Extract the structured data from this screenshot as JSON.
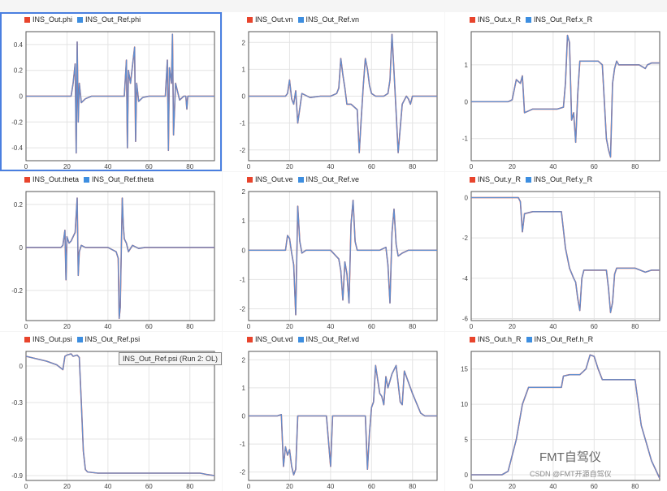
{
  "colors": {
    "out": "#e8442c",
    "ref": "#3d8ee0",
    "ref_line": "#5f8fd0",
    "axis": "#555",
    "grid": "#e4e4e4"
  },
  "tooltip": "INS_Out_Ref.psi (Run 2: OL)",
  "watermark": {
    "main": "FMT自驾仪",
    "sub": "CSDN @FMT开源自驾仪"
  },
  "chart_data": [
    {
      "type": "line",
      "id": "phi",
      "legend": [
        "INS_Out.phi",
        "INS_Out_Ref.phi"
      ],
      "xlim": [
        0,
        92
      ],
      "ylim": [
        -0.5,
        0.5
      ],
      "xticks": [
        0,
        20,
        40,
        60,
        80
      ],
      "yticks": [
        0.4,
        0.2,
        0,
        -0.2,
        -0.4
      ],
      "series": [
        {
          "x": [
            0,
            22,
            23,
            24,
            24.5,
            25,
            25.5,
            26,
            27,
            29,
            32,
            35,
            48,
            49,
            49.5,
            50,
            51,
            53,
            53.5,
            54,
            55,
            57,
            60,
            68,
            69,
            69.5,
            70,
            71,
            71.5,
            72,
            73,
            75,
            77,
            78,
            78.5,
            79,
            90,
            92
          ],
          "y": [
            0,
            0,
            0.1,
            0.25,
            -0.44,
            0.42,
            -0.2,
            0.1,
            -0.05,
            -0.02,
            0,
            0,
            0,
            0.28,
            -0.4,
            0.2,
            0.1,
            0.38,
            -0.35,
            0.1,
            -0.04,
            -0.01,
            0,
            0,
            0.28,
            -0.42,
            0.22,
            0.1,
            0.48,
            -0.3,
            0.1,
            -0.03,
            0,
            0,
            -0.1,
            0,
            0,
            0
          ]
        }
      ]
    },
    {
      "type": "line",
      "id": "vn",
      "legend": [
        "INS_Out.vn",
        "INS_Out_Ref.vn"
      ],
      "xlim": [
        0,
        92
      ],
      "ylim": [
        -2.4,
        2.4
      ],
      "xticks": [
        0,
        20,
        40,
        60,
        80
      ],
      "yticks": [
        2,
        1,
        0,
        -1,
        -2
      ],
      "series": [
        {
          "x": [
            0,
            18,
            19,
            20,
            21,
            22,
            23,
            24,
            26,
            30,
            35,
            40,
            43,
            44,
            45,
            46,
            47,
            48,
            50,
            53,
            54,
            55,
            56,
            57,
            58,
            59,
            60,
            62,
            66,
            68,
            69,
            70,
            71,
            72,
            73,
            75,
            77,
            78,
            79,
            80,
            92
          ],
          "y": [
            0,
            0,
            0.1,
            0.6,
            -0.1,
            -0.3,
            0.2,
            -1.0,
            0.1,
            -0.05,
            0,
            0,
            0.1,
            0.3,
            1.4,
            0.8,
            0.3,
            -0.3,
            -0.3,
            -0.5,
            -2.1,
            -0.8,
            0.4,
            1.4,
            1.0,
            0.4,
            0.1,
            0,
            0,
            0.1,
            0.6,
            2.3,
            0.9,
            -0.6,
            -2.1,
            -0.3,
            0,
            -0.1,
            -0.3,
            0,
            0
          ]
        }
      ]
    },
    {
      "type": "line",
      "id": "x_R",
      "legend": [
        "INS_Out.x_R",
        "INS_Out_Ref.x_R"
      ],
      "xlim": [
        0,
        92
      ],
      "ylim": [
        -1.6,
        1.9
      ],
      "xticks": [
        0,
        20,
        40,
        60,
        80
      ],
      "yticks": [
        1,
        0,
        -1
      ],
      "series": [
        {
          "x": [
            0,
            18,
            20,
            22,
            24,
            25,
            26,
            28,
            30,
            35,
            42,
            45,
            46,
            47,
            48,
            49,
            50,
            51,
            52,
            53,
            55,
            58,
            60,
            62,
            64,
            66,
            67,
            68,
            69,
            70,
            71,
            72,
            74,
            78,
            82,
            85,
            86,
            88,
            92
          ],
          "y": [
            0,
            0,
            0.05,
            0.6,
            0.5,
            0.7,
            -0.3,
            -0.25,
            -0.2,
            -0.2,
            -0.2,
            -0.15,
            0.5,
            1.8,
            1.6,
            -0.5,
            -0.3,
            -1.1,
            0.2,
            1.1,
            1.1,
            1.1,
            1.1,
            1.1,
            1.0,
            -1.0,
            -1.3,
            -1.5,
            0.5,
            0.9,
            1.1,
            1.0,
            1.0,
            1.0,
            1.0,
            0.9,
            1.0,
            1.05,
            1.05
          ]
        }
      ]
    },
    {
      "type": "line",
      "id": "theta",
      "legend": [
        "INS_Out.theta",
        "INS_Out_Ref.theta"
      ],
      "xlim": [
        0,
        92
      ],
      "ylim": [
        -0.34,
        0.26
      ],
      "xticks": [
        0,
        20,
        40,
        60,
        80
      ],
      "yticks": [
        0.2,
        0,
        -0.2
      ],
      "series": [
        {
          "x": [
            0,
            17,
            18,
            19,
            19.5,
            20,
            21,
            22,
            24,
            25,
            25.5,
            26,
            27,
            29,
            32,
            40,
            44,
            45,
            45.5,
            46,
            47,
            47.5,
            48,
            49,
            50,
            52,
            55,
            58,
            62,
            92
          ],
          "y": [
            0,
            0,
            0.01,
            0.08,
            -0.15,
            0.05,
            0.02,
            0.03,
            0.07,
            0.23,
            -0.13,
            -0.02,
            0.01,
            0,
            0,
            0,
            -0.02,
            -0.05,
            -0.33,
            -0.28,
            0.23,
            0.1,
            0.04,
            0.02,
            -0.02,
            0.01,
            -0.005,
            0,
            0,
            0
          ]
        }
      ]
    },
    {
      "type": "line",
      "id": "ve",
      "legend": [
        "INS_Out.ve",
        "INS_Out_Ref.ve"
      ],
      "xlim": [
        0,
        92
      ],
      "ylim": [
        -2.4,
        2.0
      ],
      "xticks": [
        0,
        20,
        40,
        60,
        80
      ],
      "yticks": [
        2,
        1,
        0,
        -1,
        -2
      ],
      "series": [
        {
          "x": [
            0,
            18,
            19,
            20,
            21,
            22,
            23,
            24,
            25,
            26,
            28,
            32,
            40,
            44,
            45,
            46,
            47,
            48,
            49,
            50,
            51,
            52,
            53,
            55,
            58,
            60,
            64,
            67,
            68,
            69,
            70,
            71,
            72,
            73,
            75,
            78,
            92
          ],
          "y": [
            0,
            0,
            0.5,
            0.4,
            -0.1,
            -0.5,
            -2.2,
            1.5,
            0.3,
            -0.1,
            0,
            0,
            0,
            -0.3,
            -0.7,
            -1.7,
            -0.4,
            -0.8,
            -1.8,
            0.9,
            1.7,
            0.3,
            0,
            0,
            0,
            0,
            0,
            0.1,
            -0.5,
            -1.8,
            0.6,
            1.4,
            0.2,
            -0.2,
            -0.1,
            0,
            0
          ]
        }
      ]
    },
    {
      "type": "line",
      "id": "y_R",
      "legend": [
        "INS_Out.y_R",
        "INS_Out_Ref.y_R"
      ],
      "xlim": [
        0,
        92
      ],
      "ylim": [
        -6.1,
        0.3
      ],
      "xticks": [
        0,
        20,
        40,
        60,
        80
      ],
      "yticks": [
        0,
        -2,
        -4,
        -6
      ],
      "series": [
        {
          "x": [
            0,
            20,
            23,
            24,
            25,
            26,
            30,
            35,
            40,
            44,
            46,
            48,
            50,
            51,
            52,
            53,
            54,
            55,
            56,
            58,
            62,
            66,
            67,
            68,
            69,
            70,
            71,
            72,
            74,
            80,
            85,
            88,
            92
          ],
          "y": [
            0,
            0,
            0,
            -0.2,
            -1.7,
            -0.8,
            -0.7,
            -0.7,
            -0.7,
            -0.7,
            -2.5,
            -3.5,
            -4.0,
            -4.2,
            -5.0,
            -5.6,
            -4.0,
            -3.6,
            -3.6,
            -3.6,
            -3.6,
            -3.6,
            -4.5,
            -5.7,
            -5.2,
            -3.8,
            -3.5,
            -3.5,
            -3.5,
            -3.5,
            -3.7,
            -3.6,
            -3.6
          ]
        }
      ]
    },
    {
      "type": "line",
      "id": "psi",
      "legend": [
        "INS_Out.psi",
        "INS_Out_Ref.psi"
      ],
      "xlim": [
        0,
        92
      ],
      "ylim": [
        -0.94,
        0.12
      ],
      "xticks": [
        0,
        20,
        40,
        60,
        80
      ],
      "yticks": [
        0,
        -0.3,
        -0.6,
        -0.9
      ],
      "series": [
        {
          "x": [
            0,
            5,
            10,
            15,
            18,
            19,
            20,
            22,
            23,
            25,
            26,
            27,
            28,
            29,
            30,
            35,
            50,
            60,
            70,
            80,
            85,
            88,
            92
          ],
          "y": [
            0.08,
            0.06,
            0.04,
            0.01,
            -0.03,
            0.08,
            0.09,
            0.1,
            0.08,
            0.09,
            0.07,
            -0.3,
            -0.7,
            -0.85,
            -0.87,
            -0.88,
            -0.88,
            -0.88,
            -0.88,
            -0.88,
            -0.88,
            -0.89,
            -0.9
          ]
        }
      ]
    },
    {
      "type": "line",
      "id": "vd",
      "legend": [
        "INS_Out.vd",
        "INS_Out_Ref.vd"
      ],
      "xlim": [
        0,
        92
      ],
      "ylim": [
        -2.3,
        2.3
      ],
      "xticks": [
        0,
        20,
        40,
        60,
        80
      ],
      "yticks": [
        2,
        1,
        0,
        -1,
        -2
      ],
      "series": [
        {
          "x": [
            0,
            14,
            16,
            17,
            18,
            19,
            20,
            21,
            22,
            23,
            24,
            26,
            30,
            38,
            40,
            41,
            42,
            45,
            52,
            57,
            58,
            59,
            60,
            61,
            62,
            64,
            65,
            66,
            67,
            68,
            70,
            72,
            74,
            75,
            76,
            78,
            80,
            84,
            86,
            88,
            92
          ],
          "y": [
            0,
            0,
            0.05,
            -1.8,
            -1.1,
            -1.4,
            -1.2,
            -1.8,
            -2.1,
            -1.9,
            0,
            0,
            0,
            0,
            -1.8,
            0,
            0,
            0,
            0,
            0,
            -1.9,
            -0.6,
            0.3,
            0.5,
            1.8,
            0.8,
            0.7,
            0.4,
            1.4,
            1.0,
            1.5,
            1.8,
            0.5,
            0.4,
            1.6,
            1.2,
            0.8,
            0.1,
            0,
            0,
            0
          ]
        }
      ]
    },
    {
      "type": "line",
      "id": "h_R",
      "legend": [
        "INS_Out.h_R",
        "INS_Out_Ref.h_R"
      ],
      "xlim": [
        0,
        92
      ],
      "ylim": [
        -0.8,
        17.5
      ],
      "xticks": [
        0,
        20,
        40,
        60,
        80
      ],
      "yticks": [
        15,
        10,
        5,
        0
      ],
      "series": [
        {
          "x": [
            0,
            10,
            15,
            18,
            22,
            25,
            28,
            30,
            33,
            35,
            40,
            44,
            45,
            48,
            53,
            56,
            58,
            60,
            62,
            64,
            65,
            70,
            75,
            80,
            83,
            86,
            88,
            92
          ],
          "y": [
            0,
            0,
            0,
            0.5,
            5,
            10,
            12.4,
            12.4,
            12.4,
            12.4,
            12.4,
            12.4,
            14,
            14.2,
            14.2,
            15,
            17,
            16.8,
            15,
            13.5,
            13.5,
            13.5,
            13.5,
            13.5,
            7,
            4,
            2,
            -0.5
          ]
        }
      ]
    }
  ]
}
